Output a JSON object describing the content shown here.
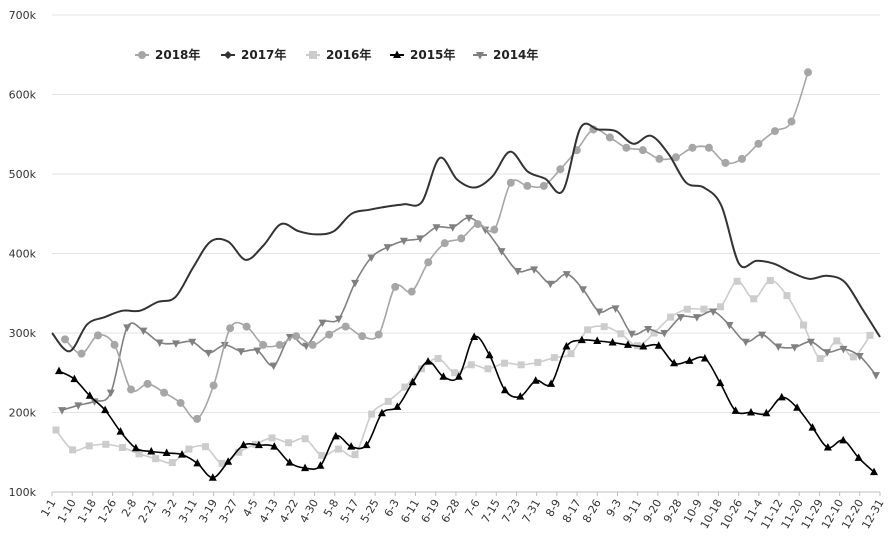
{
  "chart_data": {
    "type": "line",
    "title": "",
    "xlabel": "",
    "ylabel": "",
    "ylim": [
      100,
      700
    ],
    "y_ticks": [
      "100k",
      "200k",
      "300k",
      "400k",
      "500k",
      "600k",
      "700k"
    ],
    "x_ticks": [
      "1-1",
      "1-10",
      "1-18",
      "1-26",
      "2-8",
      "2-21",
      "3-2",
      "3-11",
      "3-19",
      "3-27",
      "4-5",
      "4-13",
      "4-22",
      "4-30",
      "5-8",
      "5-17",
      "5-25",
      "6-3",
      "6-11",
      "6-19",
      "6-28",
      "7-6",
      "7-15",
      "7-23",
      "7-31",
      "8-9",
      "8-17",
      "8-26",
      "9-3",
      "9-11",
      "9-20",
      "9-28",
      "10-9",
      "10-18",
      "10-26",
      "11-4",
      "11-12",
      "11-20",
      "11-29",
      "12-10",
      "12-20",
      "12-31"
    ],
    "grid": true,
    "legend_position": "top-left",
    "series": [
      {
        "name": "2018年",
        "marker": "circle",
        "color": "#a6a6a6",
        "values": [
          292,
          274,
          297,
          285,
          229,
          236,
          225,
          212,
          192,
          234,
          306,
          308,
          285,
          285,
          296,
          285,
          298,
          308,
          296,
          298,
          358,
          352,
          389,
          413,
          419,
          437,
          430,
          489,
          485,
          485,
          506,
          530,
          556,
          546,
          533,
          530,
          519,
          521,
          533,
          533,
          514,
          519,
          538,
          554,
          566,
          628
        ]
      },
      {
        "name": "2017年",
        "marker": "none",
        "color": "#333333",
        "values": [
          300,
          277,
          311,
          320,
          328,
          328,
          339,
          345,
          382,
          415,
          415,
          392,
          410,
          437,
          428,
          424,
          428,
          450,
          455,
          459,
          462,
          465,
          520,
          493,
          483,
          497,
          528,
          503,
          494,
          479,
          558,
          556,
          554,
          538,
          548,
          525,
          489,
          483,
          460,
          387,
          391,
          387,
          376,
          368,
          372,
          364,
          330,
          295
        ]
      },
      {
        "name": "2016年",
        "marker": "square",
        "color": "#cccccc",
        "values": [
          178,
          153,
          158,
          160,
          156,
          148,
          142,
          137,
          154,
          157,
          136,
          150,
          160,
          168,
          162,
          167,
          146,
          154,
          147,
          198,
          214,
          232,
          255,
          268,
          250,
          260,
          255,
          262,
          260,
          263,
          269,
          274,
          304,
          308,
          299,
          284,
          300,
          320,
          330,
          330,
          333,
          365,
          343,
          366,
          347,
          310,
          268,
          290,
          270,
          297
        ]
      },
      {
        "name": "2015年",
        "marker": "triangle",
        "color": "#000000",
        "values": [
          252,
          242,
          221,
          203,
          176,
          155,
          151,
          149,
          147,
          136,
          118,
          138,
          159,
          159,
          157,
          137,
          130,
          133,
          170,
          157,
          159,
          199,
          207,
          238,
          264,
          245,
          245,
          295,
          272,
          228,
          220,
          240,
          236,
          283,
          291,
          290,
          288,
          285,
          283,
          284,
          262,
          265,
          268,
          237,
          202,
          200,
          199,
          219,
          206,
          181,
          156,
          165,
          143,
          125
        ]
      },
      {
        "name": "2014年",
        "marker": "triangle-down",
        "color": "#808080",
        "values": [
          203,
          209,
          214,
          225,
          307,
          303,
          288,
          287,
          289,
          275,
          285,
          277,
          278,
          259,
          295,
          284,
          313,
          318,
          363,
          395,
          408,
          416,
          419,
          433,
          433,
          445,
          430,
          403,
          378,
          380,
          362,
          374,
          355,
          327,
          331,
          299,
          305,
          300,
          320,
          320,
          327,
          310,
          289,
          298,
          283,
          282,
          289,
          276,
          280,
          271,
          247
        ]
      }
    ]
  }
}
